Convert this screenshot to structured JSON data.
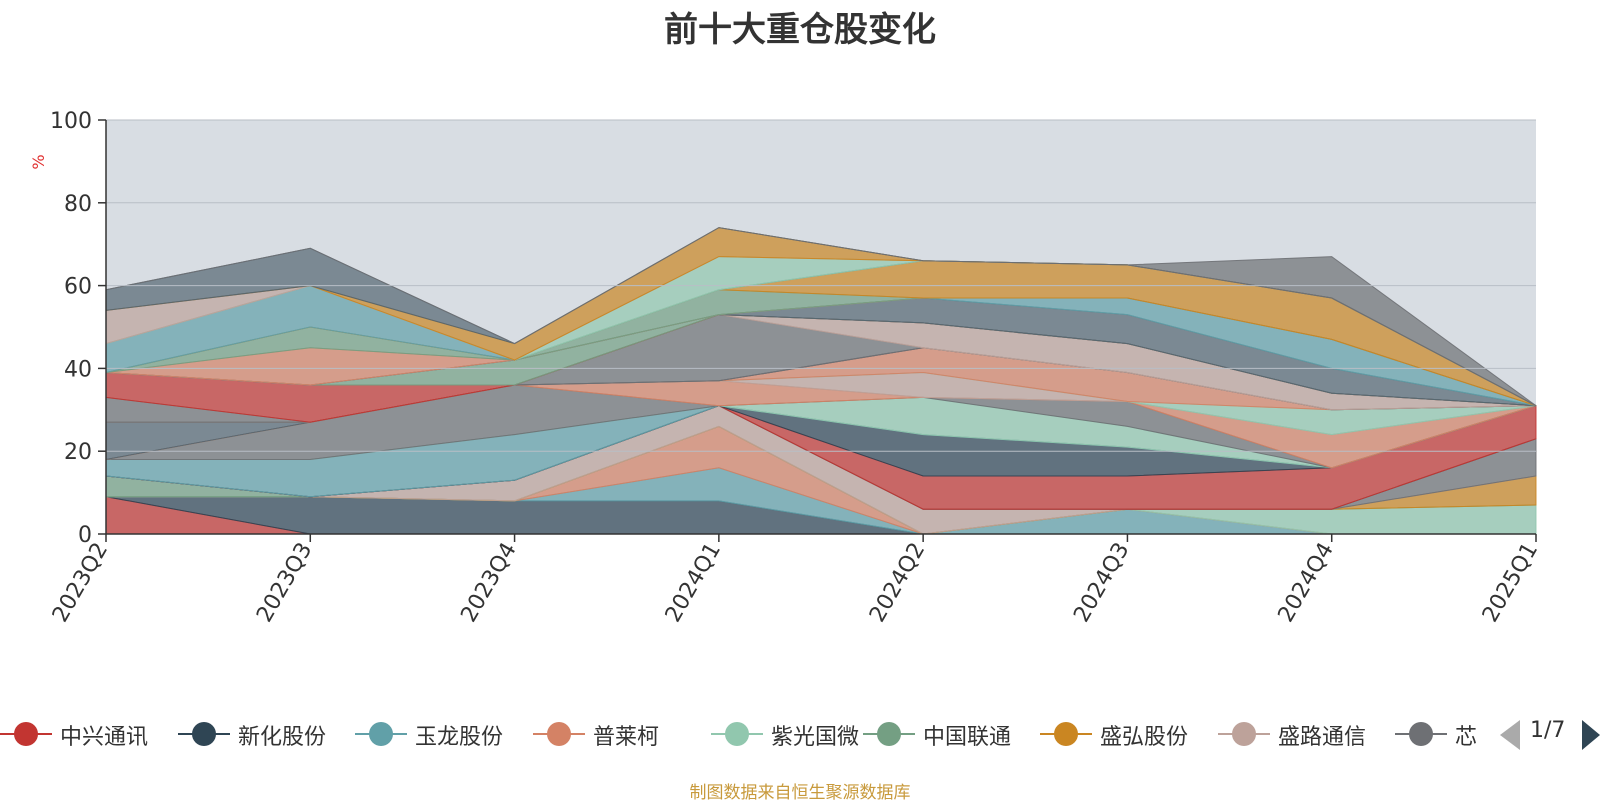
{
  "chart_data": {
    "type": "area",
    "stacked": true,
    "title": "前十大重仓股变化",
    "ylabel": "%",
    "ylim": [
      0,
      100
    ],
    "yticks": [
      0,
      20,
      40,
      60,
      80,
      100
    ],
    "categories": [
      "2023Q2",
      "2023Q3",
      "2023Q4",
      "2024Q1",
      "2024Q2",
      "2024Q3",
      "2024Q4",
      "2025Q1"
    ],
    "background_color": "#d8dde3",
    "grid": true,
    "legend_position": "bottom",
    "legend_page": "1/7",
    "series": [
      {
        "name": "中兴通讯",
        "color": "#c23531",
        "values": [
          9,
          0,
          0,
          0,
          0,
          0,
          0,
          0
        ]
      },
      {
        "name": "新化股份",
        "color": "#2f4554",
        "values": [
          0,
          9,
          8,
          8,
          0,
          0,
          0,
          0
        ]
      },
      {
        "name": "玉龙股份",
        "color": "#61a0a8",
        "values": [
          0,
          0,
          0,
          8,
          0,
          6,
          0,
          0
        ]
      },
      {
        "name": "普莱柯",
        "color": "#d48265",
        "values": [
          0,
          0,
          0,
          10,
          0,
          0,
          0,
          0
        ]
      },
      {
        "name": "紫光国微",
        "color": "#91c7ae",
        "values": [
          0,
          0,
          0,
          0,
          0,
          0,
          6,
          7
        ]
      },
      {
        "name": "中国联通",
        "color": "#749f83",
        "values": [
          5,
          0,
          0,
          0,
          0,
          0,
          0,
          0
        ]
      },
      {
        "name": "盛弘股份",
        "color": "#ca8622",
        "values": [
          0,
          0,
          0,
          0,
          0,
          0,
          0,
          7
        ]
      },
      {
        "name": "盛路通信",
        "color": "#bda29a",
        "values": [
          0,
          0,
          5,
          5,
          6,
          0,
          0,
          0
        ]
      },
      {
        "name": "芯",
        "color": "#6e7074",
        "values": [
          0,
          0,
          0,
          0,
          0,
          0,
          0,
          9
        ]
      },
      {
        "name": "",
        "color": "#546570",
        "values": [
          0,
          0,
          0,
          0,
          0,
          0,
          0,
          0
        ]
      },
      {
        "name": "",
        "color": "#c23531",
        "values": [
          0,
          0,
          0,
          0,
          8,
          8,
          10,
          8
        ]
      },
      {
        "name": "",
        "color": "#2f4554",
        "values": [
          0,
          0,
          0,
          0,
          10,
          7,
          0,
          0
        ]
      },
      {
        "name": "",
        "color": "#61a0a8",
        "values": [
          4,
          9,
          11,
          0,
          0,
          0,
          0,
          0
        ]
      },
      {
        "name": "",
        "color": "#91c7ae",
        "values": [
          0,
          0,
          0,
          0,
          9,
          5,
          0,
          0
        ]
      },
      {
        "name": "",
        "color": "#6e7074",
        "values": [
          0,
          9,
          12,
          0,
          0,
          6,
          0,
          0
        ]
      },
      {
        "name": "",
        "color": "#d48265",
        "values": [
          0,
          0,
          0,
          6,
          0,
          0,
          8,
          0
        ]
      },
      {
        "name": "",
        "color": "#bda29a",
        "values": [
          0,
          0,
          0,
          0,
          6,
          0,
          0,
          0
        ]
      },
      {
        "name": "",
        "color": "#91c7ae",
        "values": [
          0,
          0,
          0,
          0,
          0,
          0,
          6,
          0
        ]
      },
      {
        "name": "",
        "color": "#d48265",
        "values": [
          0,
          0,
          0,
          0,
          6,
          7,
          0,
          0
        ]
      },
      {
        "name": "",
        "color": "#546570",
        "values": [
          9,
          0,
          0,
          0,
          0,
          0,
          0,
          0
        ]
      },
      {
        "name": "",
        "color": "#6e7074",
        "values": [
          0,
          0,
          0,
          16,
          0,
          0,
          0,
          0
        ]
      },
      {
        "name": "",
        "color": "#bda29a",
        "values": [
          0,
          0,
          0,
          0,
          6,
          7,
          4,
          0
        ]
      },
      {
        "name": "",
        "color": "#6e7074",
        "values": [
          6,
          0,
          0,
          0,
          0,
          0,
          0,
          0
        ]
      },
      {
        "name": "",
        "color": "#c23531",
        "values": [
          6,
          9,
          0,
          0,
          0,
          0,
          0,
          0
        ]
      },
      {
        "name": "",
        "color": "#749f83",
        "values": [
          0,
          0,
          6,
          0,
          0,
          0,
          0,
          0
        ]
      },
      {
        "name": "",
        "color": "#546570",
        "values": [
          0,
          0,
          0,
          0,
          6,
          7,
          6,
          0
        ]
      },
      {
        "name": "",
        "color": "#61a0a8",
        "values": [
          0,
          0,
          0,
          0,
          0,
          4,
          7,
          0
        ]
      },
      {
        "name": "",
        "color": "#d48265",
        "values": [
          0,
          9,
          0,
          0,
          0,
          0,
          0,
          0
        ]
      },
      {
        "name": "",
        "color": "#749f83",
        "values": [
          0,
          5,
          0,
          6,
          0,
          0,
          0,
          0
        ]
      },
      {
        "name": "",
        "color": "#ca8622",
        "values": [
          0,
          0,
          0,
          0,
          9,
          8,
          10,
          0
        ]
      },
      {
        "name": "",
        "color": "#61a0a8",
        "values": [
          7,
          10,
          0,
          0,
          0,
          0,
          0,
          0
        ]
      },
      {
        "name": "",
        "color": "#91c7ae",
        "values": [
          0,
          0,
          0,
          8,
          0,
          0,
          0,
          0
        ]
      },
      {
        "name": "",
        "color": "#bda29a",
        "values": [
          8,
          0,
          0,
          0,
          0,
          0,
          0,
          0
        ]
      },
      {
        "name": "",
        "color": "#ca8622",
        "values": [
          0,
          0,
          4,
          7,
          0,
          0,
          0,
          0
        ]
      },
      {
        "name": "",
        "color": "#546570",
        "values": [
          5,
          9,
          0,
          0,
          0,
          0,
          0,
          0
        ]
      },
      {
        "name": "",
        "color": "#6e7074",
        "values": [
          0,
          0,
          0,
          0,
          0,
          0,
          10,
          0
        ]
      }
    ]
  },
  "footer": {
    "source_note": "制图数据来自恒生聚源数据库"
  }
}
